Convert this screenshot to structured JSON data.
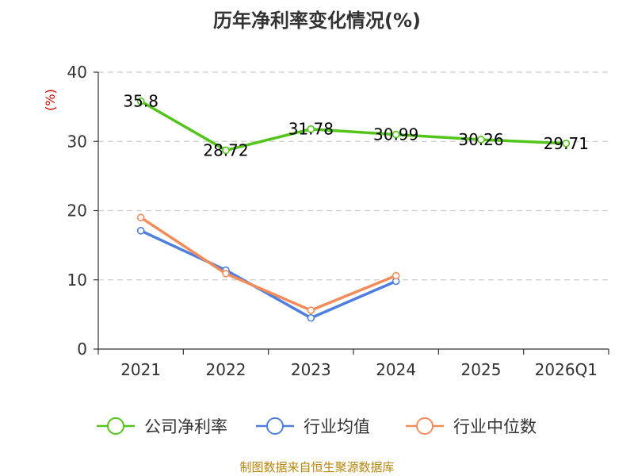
{
  "chart_data": {
    "type": "line",
    "title": "历年净利率变化情况(%)",
    "ylabel": "(%)",
    "categories": [
      "2021",
      "2022",
      "2023",
      "2024",
      "2025",
      "2026Q1"
    ],
    "yticks": [
      "0",
      "10",
      "20",
      "30",
      "40"
    ],
    "ylim": [
      0,
      40
    ],
    "grid": true,
    "legend_position": "bottom",
    "series": [
      {
        "name": "公司净利率",
        "color": "#52c41a",
        "values": [
          35.8,
          28.72,
          31.78,
          30.99,
          30.26,
          29.71
        ],
        "labels": [
          "35.8",
          "28.72",
          "31.78",
          "30.99",
          "30.26",
          "29.71"
        ]
      },
      {
        "name": "行业均值",
        "color": "#4f7fdd",
        "values": [
          17.1,
          11.4,
          4.5,
          9.8,
          null,
          null
        ]
      },
      {
        "name": "行业中位数",
        "color": "#f28c5a",
        "values": [
          19.0,
          10.9,
          5.6,
          10.6,
          null,
          null
        ]
      }
    ],
    "source": "制图数据来自恒生聚源数据库"
  }
}
